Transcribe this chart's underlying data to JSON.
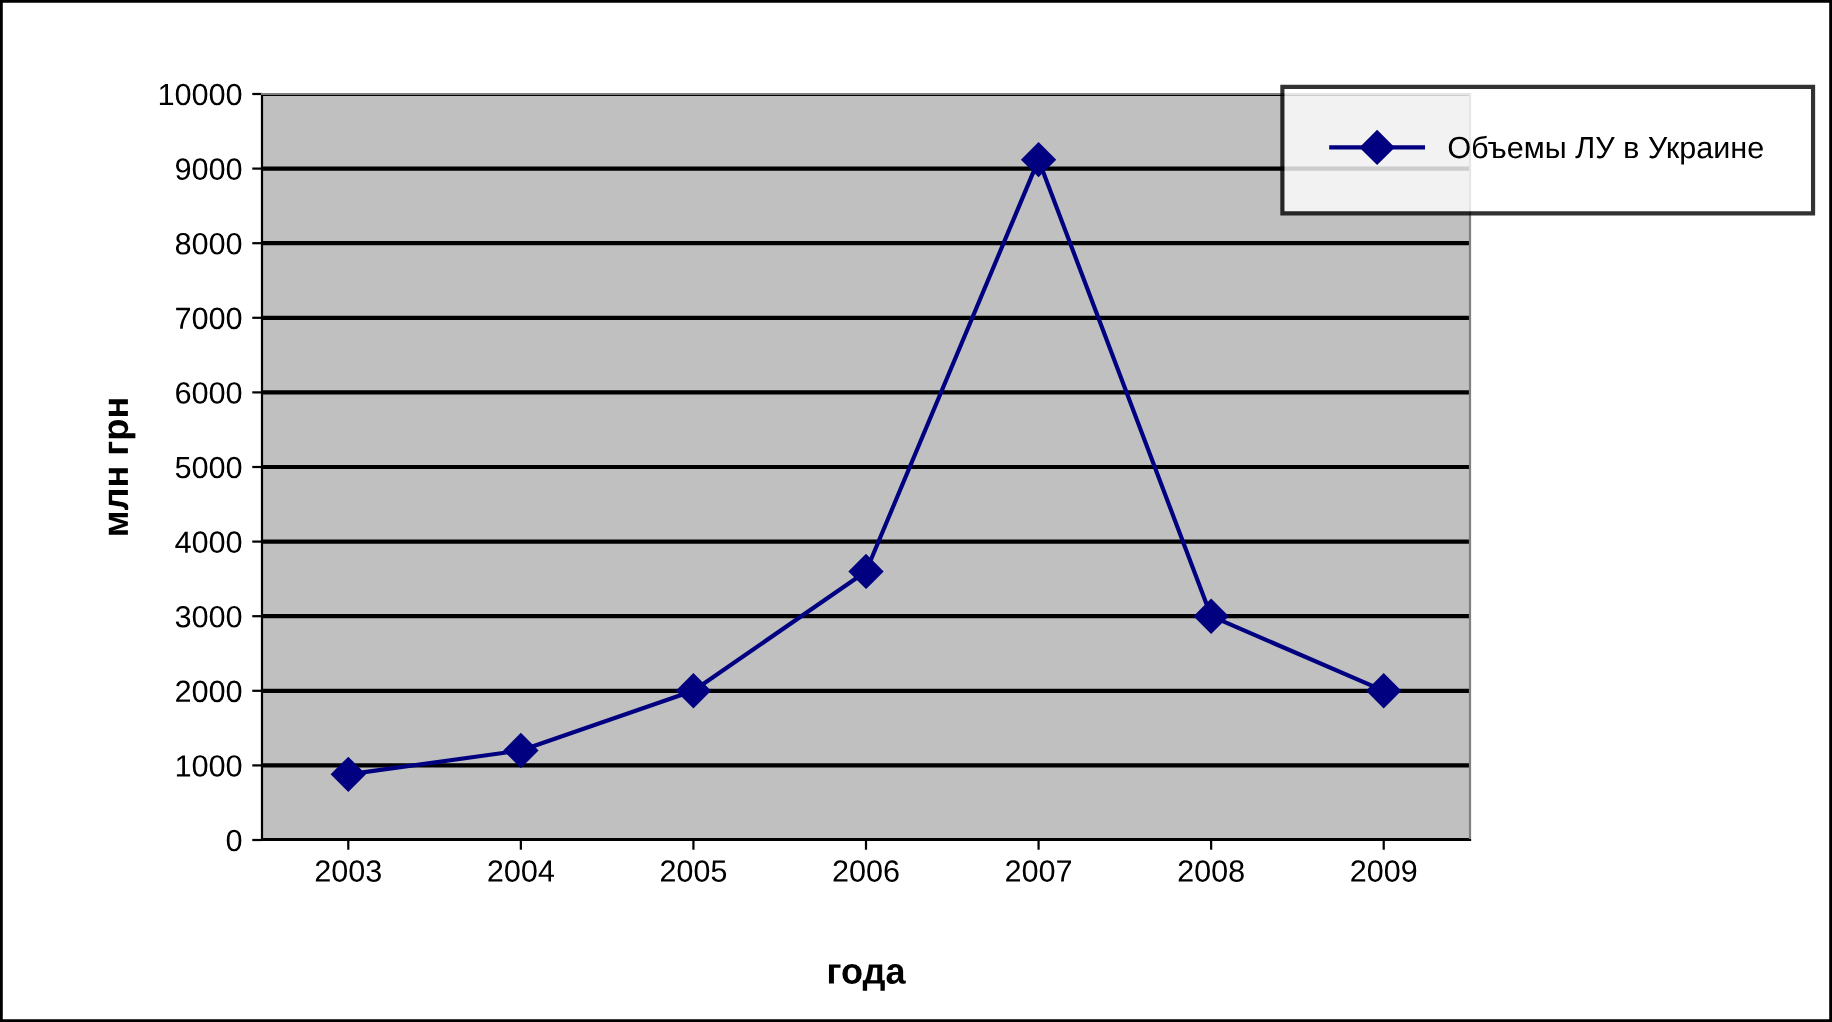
{
  "chart_data": {
    "type": "line",
    "xlabel": "года",
    "ylabel": "млн грн",
    "categories": [
      "2003",
      "2004",
      "2005",
      "2006",
      "2007",
      "2008",
      "2009"
    ],
    "series": [
      {
        "name": "Объемы ЛУ в Украине",
        "color": "#000080",
        "values": [
          880,
          1200,
          2000,
          3600,
          9120,
          3000,
          2000
        ]
      }
    ],
    "ylim": [
      0,
      10000
    ],
    "yticks": [
      0,
      1000,
      2000,
      3000,
      4000,
      5000,
      6000,
      7000,
      8000,
      9000,
      10000
    ],
    "grid": "y",
    "legend": "top right",
    "marker": "diamond",
    "line_style": "solid"
  }
}
